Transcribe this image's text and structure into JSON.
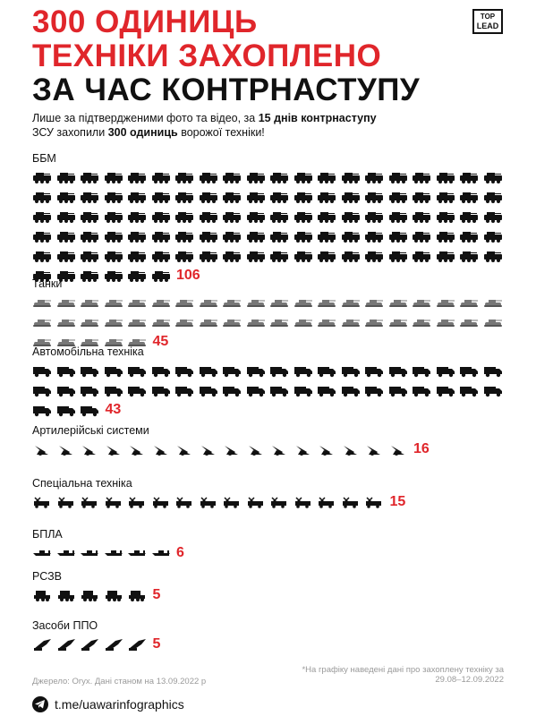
{
  "title": {
    "line1": "300 ОДИНИЦЬ",
    "line2": "ТЕХНІКИ ЗАХОПЛЕНО",
    "line3": "ЗА ЧАС КОНТРНАСТУПУ"
  },
  "logo": {
    "top": "TOP",
    "bottom": "LEAD"
  },
  "intro": {
    "part1": "Лише за підтвердженими фото та відео, за ",
    "bold1": "15 днів контрнаступу",
    "part2": "ЗСУ захопили ",
    "bold2": "300 одиниць",
    "part3": " ворожої техніки!"
  },
  "categories": [
    {
      "label": "ББМ",
      "count": 106,
      "count_label": "106",
      "icon": "apc-icon"
    },
    {
      "label": "Танки",
      "count": 45,
      "count_label": "45",
      "icon": "tank-icon"
    },
    {
      "label": "Автомобільна техніка",
      "count": 43,
      "count_label": "43",
      "icon": "truck-icon"
    },
    {
      "label": "Артилерійські системи",
      "count": 16,
      "count_label": "16",
      "icon": "artillery-icon"
    },
    {
      "label": "Спеціальна техніка",
      "count": 15,
      "count_label": "15",
      "icon": "special-vehicle-icon"
    },
    {
      "label": "БПЛА",
      "count": 6,
      "count_label": "6",
      "icon": "drone-icon"
    },
    {
      "label": "РСЗВ",
      "count": 5,
      "count_label": "5",
      "icon": "mlrs-icon"
    },
    {
      "label": "Засоби ППО",
      "count": 5,
      "count_label": "5",
      "icon": "air-defense-icon"
    }
  ],
  "footer": {
    "source": "Джерело: Oryx. Дані станом на 13.09.2022 р",
    "note": "*На графіку наведені дані про захоплену техніку за 29.08–12.09.2022",
    "telegram": "t.me/uawarinfographics"
  },
  "colors": {
    "accent": "#e0262b",
    "text": "#111111",
    "muted": "#9a9a9a"
  }
}
